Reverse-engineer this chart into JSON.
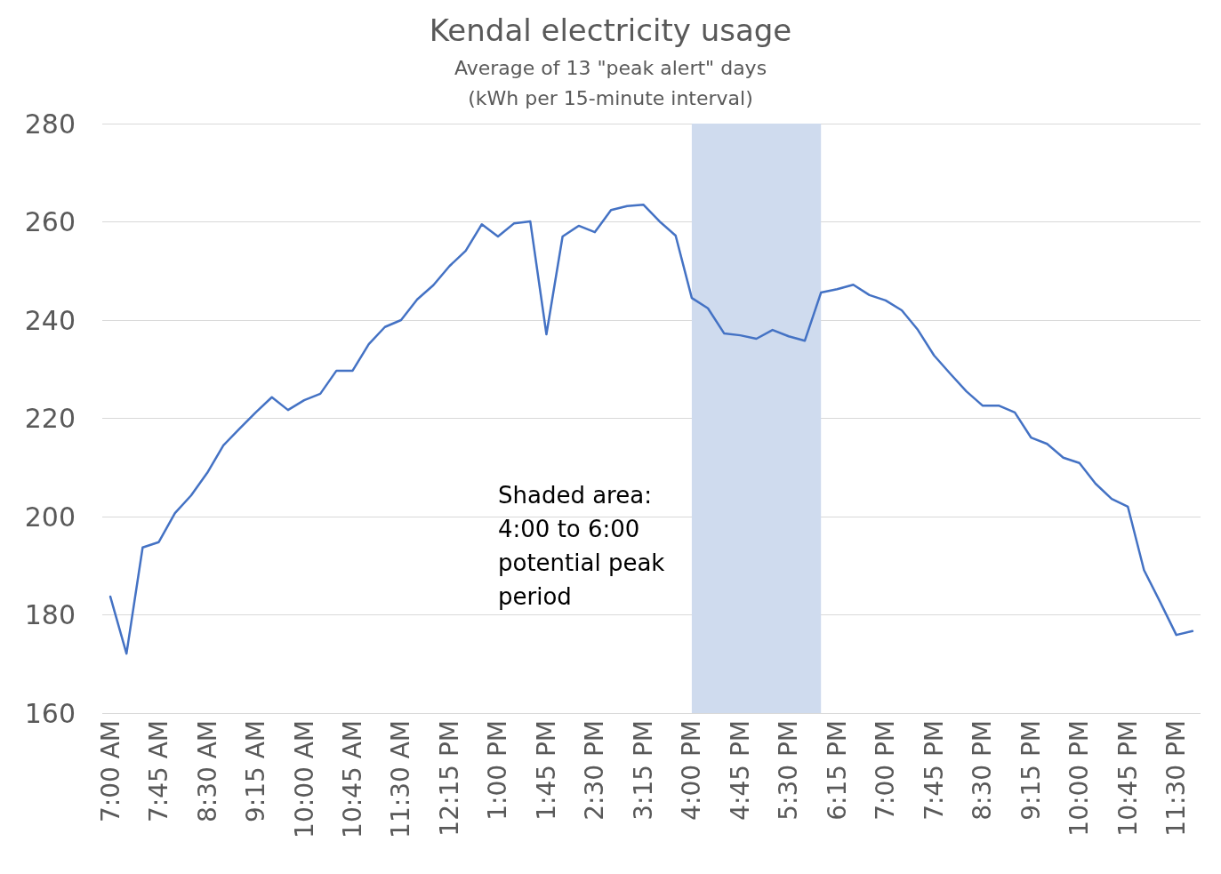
{
  "chart_data": {
    "type": "line",
    "title": "Kendal electricity usage",
    "subtitle": "Average of 13 \"peak alert\" days\n(kWh per 15-minute interval)",
    "x": [
      7,
      7.25,
      7.5,
      7.75,
      8,
      8.25,
      8.5,
      8.75,
      9,
      9.25,
      9.5,
      9.75,
      10,
      10.25,
      10.5,
      10.75,
      11,
      11.25,
      11.5,
      11.75,
      12,
      12.25,
      12.5,
      12.75,
      13,
      13.25,
      13.5,
      13.75,
      14,
      14.25,
      14.5,
      14.75,
      15,
      15.25,
      15.5,
      15.75,
      16,
      16.25,
      16.5,
      16.75,
      17,
      17.25,
      17.5,
      17.75,
      18,
      18.25,
      18.5,
      18.75,
      19,
      19.25,
      19.5,
      19.75,
      20,
      20.25,
      20.5,
      20.75,
      21,
      21.25,
      21.5,
      21.75,
      22,
      22.25,
      22.5,
      22.75,
      23,
      23.25,
      23.5,
      23.75
    ],
    "series": [
      {
        "color": "#4472c4",
        "values": [
          183.7,
          172.1,
          193.7,
          194.8,
          200.7,
          204.3,
          208.9,
          214.5,
          217.9,
          221.2,
          224.3,
          221.7,
          223.7,
          225.0,
          229.7,
          229.7,
          235.1,
          238.6,
          240.0,
          244.2,
          247.1,
          251.0,
          254.1,
          259.5,
          257.0,
          259.7,
          260.1,
          237.1,
          257.0,
          259.2,
          257.9,
          262.4,
          263.2,
          263.5,
          260.1,
          257.2,
          244.5,
          242.4,
          237.3,
          236.9,
          236.2,
          238.0,
          236.7,
          235.8,
          245.6,
          246.3,
          247.2,
          245.1,
          244.0,
          242.0,
          238.0,
          232.8,
          229.1,
          225.5,
          222.6,
          222.6,
          221.2,
          216.1,
          214.8,
          212.0,
          210.9,
          206.7,
          203.6,
          202.0,
          189.1,
          182.6,
          175.9,
          176.7
        ]
      }
    ],
    "xlim": [
      6.875,
      23.875
    ],
    "xticks": [
      {
        "value": 7,
        "label": "7:00 AM"
      },
      {
        "value": 7.75,
        "label": "7:45 AM"
      },
      {
        "value": 8.5,
        "label": "8:30 AM"
      },
      {
        "value": 9.25,
        "label": "9:15 AM"
      },
      {
        "value": 10,
        "label": "10:00 AM"
      },
      {
        "value": 10.75,
        "label": "10:45 AM"
      },
      {
        "value": 11.5,
        "label": "11:30 AM"
      },
      {
        "value": 12.25,
        "label": "12:15 PM"
      },
      {
        "value": 13,
        "label": "1:00 PM"
      },
      {
        "value": 13.75,
        "label": "1:45 PM"
      },
      {
        "value": 14.5,
        "label": "2:30 PM"
      },
      {
        "value": 15.25,
        "label": "3:15 PM"
      },
      {
        "value": 16,
        "label": "4:00 PM"
      },
      {
        "value": 16.75,
        "label": "4:45 PM"
      },
      {
        "value": 17.5,
        "label": "5:30 PM"
      },
      {
        "value": 18.25,
        "label": "6:15 PM"
      },
      {
        "value": 19,
        "label": "7:00 PM"
      },
      {
        "value": 19.75,
        "label": "7:45 PM"
      },
      {
        "value": 20.5,
        "label": "8:30 PM"
      },
      {
        "value": 21.25,
        "label": "9:15 PM"
      },
      {
        "value": 22,
        "label": "10:00 PM"
      },
      {
        "value": 22.75,
        "label": "10:45 PM"
      },
      {
        "value": 23.5,
        "label": "11:30 PM"
      }
    ],
    "ylim": [
      160,
      280
    ],
    "yticks": [
      160,
      180,
      200,
      220,
      240,
      260,
      280
    ],
    "bands": [
      {
        "axis": "x",
        "from": 16,
        "to": 18,
        "color": "#cfdbee"
      }
    ],
    "annotations": [
      "Shaded area:\n4:00 to 6:00\npotential peak\nperiod"
    ],
    "grid": "y",
    "marker": "none",
    "line_style": "solid"
  }
}
